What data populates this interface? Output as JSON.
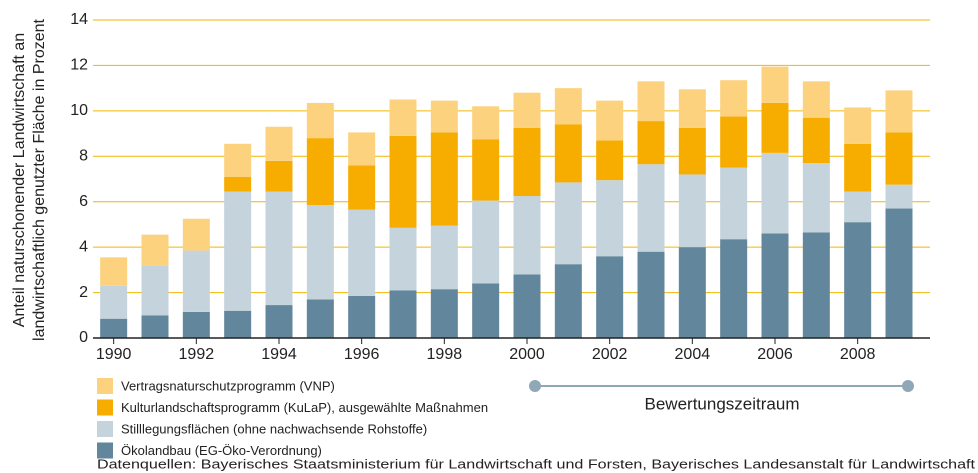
{
  "chart_data": {
    "type": "stacked_bar",
    "ylabel": [
      "Anteil naturschonender Landwirtschaft an",
      "landwirtschaftlich genutzter Fläche in Prozent"
    ],
    "x": [
      1990,
      1991,
      1992,
      1993,
      1994,
      1995,
      1996,
      1997,
      1998,
      1999,
      2000,
      2001,
      2002,
      2003,
      2004,
      2005,
      2006,
      2007,
      2008,
      2009
    ],
    "xlim": [
      1989.5,
      2009.75
    ],
    "xticks": [
      1990,
      1992,
      1994,
      1996,
      1998,
      2000,
      2002,
      2004,
      2006,
      2008
    ],
    "ylim": [
      0,
      14
    ],
    "yticks": [
      0,
      2,
      4,
      6,
      8,
      10,
      12,
      14
    ],
    "grid": true,
    "series": [
      {
        "name": "Ökolandbau (EG-Öko-Verordnung)",
        "color": "#62879c",
        "values": [
          0.85,
          1.0,
          1.15,
          1.2,
          1.45,
          1.7,
          1.85,
          2.1,
          2.15,
          2.4,
          2.8,
          3.25,
          3.6,
          3.8,
          4.0,
          4.35,
          4.6,
          4.65,
          5.1,
          5.7
        ]
      },
      {
        "name": "Stilllegungsflächen (ohne nachwachsende Rohstoffe)",
        "color": "#c5d3dd",
        "values": [
          1.45,
          2.2,
          2.7,
          5.25,
          5.0,
          4.15,
          3.8,
          2.75,
          2.8,
          3.65,
          3.45,
          3.6,
          3.35,
          3.85,
          3.2,
          3.15,
          3.55,
          3.05,
          1.35,
          1.05
        ]
      },
      {
        "name": "Kulturlandschaftsprogramm (KuLaP), ausgewählte Maßnahmen",
        "color": "#f6ad00",
        "values": [
          0,
          0,
          0,
          0.65,
          1.35,
          2.95,
          1.95,
          4.05,
          4.1,
          2.7,
          3.0,
          2.55,
          1.75,
          1.9,
          2.05,
          2.25,
          2.2,
          2.0,
          2.1,
          2.3
        ]
      },
      {
        "name": "Vertragsnaturschutzprogramm (VNP)",
        "color": "#fcd27f",
        "values": [
          1.25,
          1.35,
          1.4,
          1.45,
          1.5,
          1.55,
          1.45,
          1.6,
          1.4,
          1.45,
          1.55,
          1.6,
          1.75,
          1.75,
          1.7,
          1.6,
          1.6,
          1.6,
          1.6,
          1.85
        ]
      }
    ],
    "annotation": "Bewertungszeitraum",
    "source": "Datenquellen: Bayerisches Staatsministerium für Landwirtschaft und Forsten, Bayerisches Landesanstalt für Landwirtschaft"
  }
}
